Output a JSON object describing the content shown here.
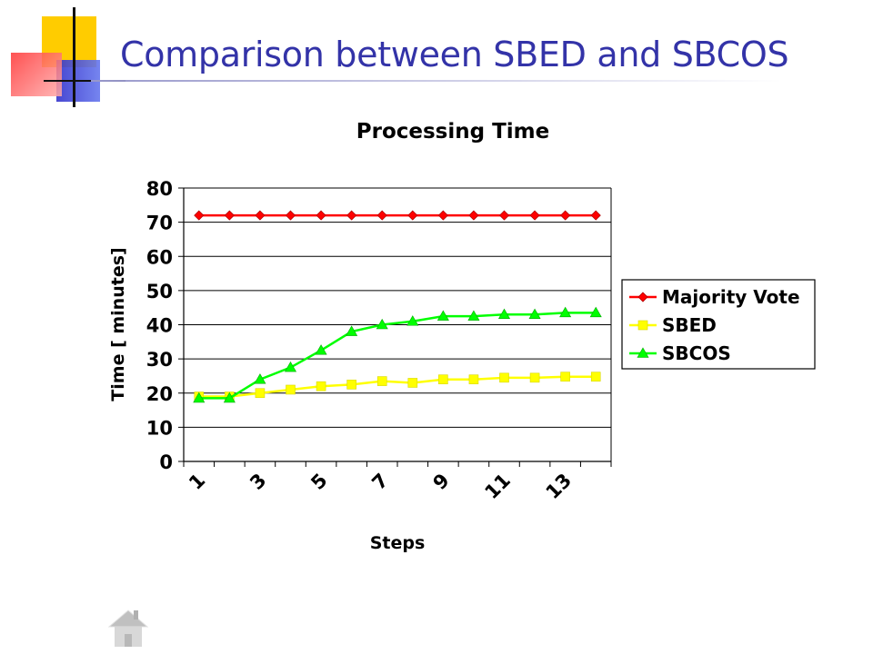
{
  "slide": {
    "title": "Comparison between SBED and SBCOS"
  },
  "colors": {
    "title": "#3333a8",
    "majority_vote": "#ff0000",
    "sbed": "#ffff00",
    "sbcos": "#00ff00",
    "deco_yellow": "#ffcc00",
    "deco_blue": "#3333cc",
    "deco_red": "#ff3333"
  },
  "icons": {
    "home": "home-icon"
  },
  "chart_data": {
    "type": "line",
    "title": "Processing Time",
    "xlabel": "Steps",
    "ylabel": "Time [ minutes]",
    "ylim": [
      0,
      80
    ],
    "yticks": [
      0,
      10,
      20,
      30,
      40,
      50,
      60,
      70,
      80
    ],
    "x": [
      1,
      2,
      3,
      4,
      5,
      6,
      7,
      8,
      9,
      10,
      11,
      12,
      13,
      14
    ],
    "xtick_labels": [
      "1",
      "3",
      "5",
      "7",
      "9",
      "11",
      "13"
    ],
    "grid": "horizontal",
    "legend": "right",
    "series": [
      {
        "name": "Majority Vote",
        "marker": "diamond",
        "color": "#ff0000",
        "values": [
          72,
          72,
          72,
          72,
          72,
          72,
          72,
          72,
          72,
          72,
          72,
          72,
          72,
          72
        ]
      },
      {
        "name": "SBED",
        "marker": "square",
        "color": "#ffff00",
        "values": [
          19,
          19,
          20,
          21,
          22,
          22.5,
          23.5,
          23,
          24,
          24,
          24.5,
          24.5,
          24.8,
          24.8
        ]
      },
      {
        "name": "SBCOS",
        "marker": "triangle",
        "color": "#00ff00",
        "values": [
          18.5,
          18.5,
          24,
          27.5,
          32.5,
          38,
          40,
          41,
          42.5,
          42.5,
          43,
          43,
          43.5,
          43.5
        ]
      }
    ]
  }
}
